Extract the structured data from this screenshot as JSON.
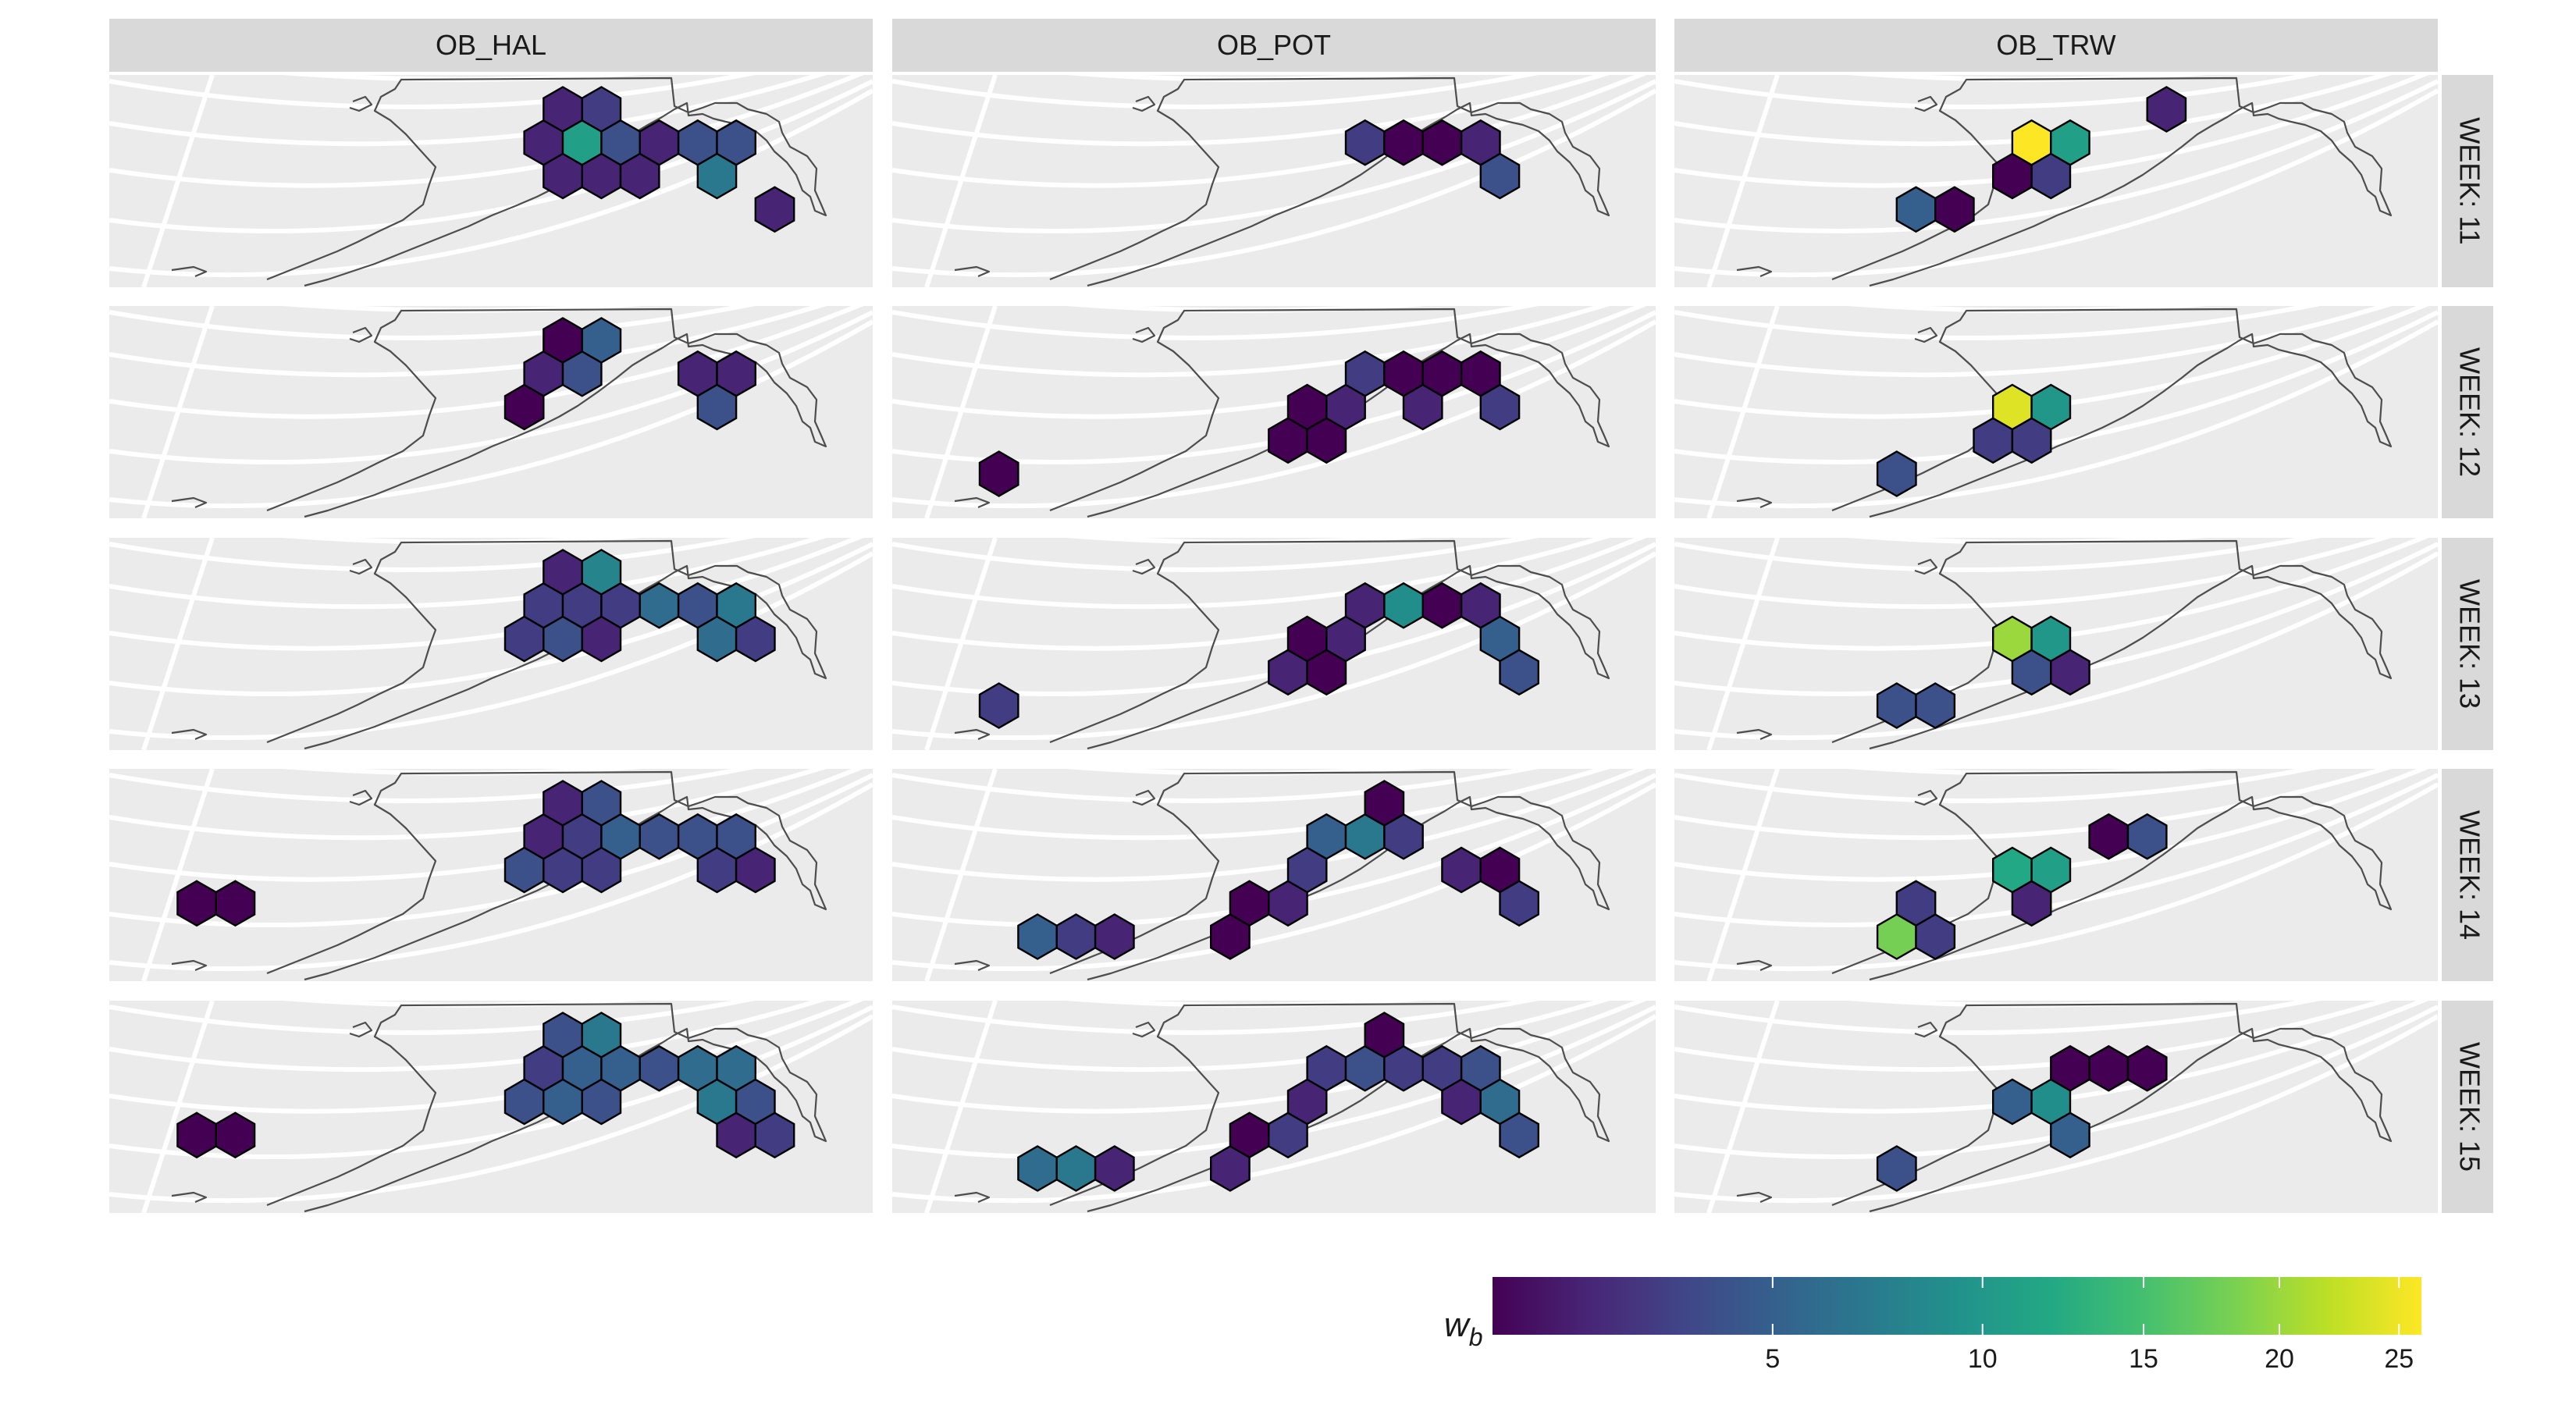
{
  "chart_data": {
    "type": "heatmap",
    "subtype": "faceted hexbin map",
    "columns": [
      "OB_HAL",
      "OB_POT",
      "OB_TRW"
    ],
    "rows": [
      "WEEK: 11",
      "WEEK: 12",
      "WEEK: 13",
      "WEEK: 14",
      "WEEK: 15"
    ],
    "legend": {
      "title": "w",
      "title_subscript": "b",
      "placement": "bottom-right",
      "colormap": "viridis",
      "range": [
        1,
        26
      ],
      "ticks": [
        5,
        10,
        15,
        20,
        25
      ],
      "tick_labels": [
        "5",
        "10",
        "15",
        "20",
        "25"
      ]
    },
    "panels": [
      {
        "column": "OB_HAL",
        "row": "WEEK: 11",
        "cells": [
          [
            10,
            1,
            2
          ],
          [
            11,
            0,
            2
          ],
          [
            11,
            1,
            11
          ],
          [
            11,
            2,
            2
          ],
          [
            12,
            0,
            3
          ],
          [
            12,
            1,
            4
          ],
          [
            12,
            2,
            2
          ],
          [
            13,
            1,
            2
          ],
          [
            13,
            2,
            2
          ],
          [
            14,
            1,
            4
          ],
          [
            15,
            1,
            4
          ],
          [
            15,
            2,
            7
          ],
          [
            16,
            3,
            2
          ]
        ]
      },
      {
        "column": "OB_HAL",
        "row": "WEEK: 12",
        "cells": [
          [
            10,
            1,
            2
          ],
          [
            10,
            2,
            1
          ],
          [
            11,
            0,
            1
          ],
          [
            11,
            1,
            4
          ],
          [
            12,
            0,
            5
          ],
          [
            14,
            1,
            2
          ],
          [
            15,
            1,
            2
          ],
          [
            15,
            2,
            4
          ]
        ]
      },
      {
        "column": "OB_HAL",
        "row": "WEEK: 13",
        "cells": [
          [
            10,
            1,
            3
          ],
          [
            10,
            2,
            3
          ],
          [
            11,
            0,
            2
          ],
          [
            11,
            1,
            3
          ],
          [
            11,
            2,
            4
          ],
          [
            12,
            0,
            8
          ],
          [
            12,
            1,
            3
          ],
          [
            12,
            2,
            2
          ],
          [
            13,
            1,
            6
          ],
          [
            14,
            1,
            4
          ],
          [
            15,
            1,
            7
          ],
          [
            15,
            2,
            6
          ],
          [
            16,
            2,
            3
          ]
        ]
      },
      {
        "column": "OB_HAL",
        "row": "WEEK: 14",
        "cells": [
          [
            1,
            3,
            1
          ],
          [
            2,
            3,
            1
          ],
          [
            10,
            1,
            2
          ],
          [
            10,
            2,
            4
          ],
          [
            11,
            0,
            2
          ],
          [
            11,
            1,
            3
          ],
          [
            11,
            2,
            3
          ],
          [
            12,
            0,
            4
          ],
          [
            12,
            1,
            5
          ],
          [
            12,
            2,
            3
          ],
          [
            13,
            1,
            4
          ],
          [
            14,
            1,
            4
          ],
          [
            15,
            1,
            4
          ],
          [
            15,
            2,
            3
          ],
          [
            16,
            2,
            2
          ]
        ]
      },
      {
        "column": "OB_HAL",
        "row": "WEEK: 15",
        "cells": [
          [
            1,
            3,
            1
          ],
          [
            2,
            3,
            1
          ],
          [
            10,
            1,
            3
          ],
          [
            10,
            2,
            4
          ],
          [
            11,
            0,
            4
          ],
          [
            11,
            1,
            5
          ],
          [
            11,
            2,
            5
          ],
          [
            12,
            0,
            7
          ],
          [
            12,
            1,
            5
          ],
          [
            12,
            2,
            4
          ],
          [
            13,
            1,
            4
          ],
          [
            14,
            1,
            6
          ],
          [
            15,
            1,
            6
          ],
          [
            15,
            2,
            7
          ],
          [
            15,
            3,
            2
          ],
          [
            16,
            2,
            4
          ],
          [
            16,
            3,
            3
          ]
        ]
      },
      {
        "column": "OB_POT",
        "row": "WEEK: 11",
        "cells": [
          [
            11,
            1,
            3
          ],
          [
            12,
            1,
            1
          ],
          [
            13,
            1,
            1
          ],
          [
            14,
            1,
            2
          ],
          [
            15,
            2,
            4
          ]
        ]
      },
      {
        "column": "OB_POT",
        "row": "WEEK: 12",
        "cells": [
          [
            2,
            4,
            1
          ],
          [
            9,
            3,
            1
          ],
          [
            10,
            2,
            1
          ],
          [
            10,
            3,
            1
          ],
          [
            11,
            1,
            3
          ],
          [
            11,
            2,
            2
          ],
          [
            12,
            1,
            1
          ],
          [
            13,
            1,
            1
          ],
          [
            13,
            2,
            2
          ],
          [
            14,
            1,
            1
          ],
          [
            15,
            2,
            3
          ]
        ]
      },
      {
        "column": "OB_POT",
        "row": "WEEK: 13",
        "cells": [
          [
            2,
            4,
            3
          ],
          [
            9,
            3,
            2
          ],
          [
            10,
            2,
            1
          ],
          [
            10,
            3,
            1
          ],
          [
            11,
            1,
            2
          ],
          [
            11,
            2,
            2
          ],
          [
            12,
            1,
            9
          ],
          [
            13,
            1,
            1
          ],
          [
            14,
            1,
            2
          ],
          [
            15,
            2,
            5
          ],
          [
            15,
            3,
            4
          ]
        ]
      },
      {
        "column": "OB_POT",
        "row": "WEEK: 14",
        "cells": [
          [
            3,
            4,
            5
          ],
          [
            4,
            4,
            3
          ],
          [
            5,
            4,
            2
          ],
          [
            8,
            3,
            1
          ],
          [
            8,
            4,
            1
          ],
          [
            9,
            3,
            2
          ],
          [
            10,
            1,
            5
          ],
          [
            10,
            2,
            3
          ],
          [
            11,
            1,
            7
          ],
          [
            12,
            0,
            1
          ],
          [
            12,
            1,
            3
          ],
          [
            14,
            2,
            2
          ],
          [
            15,
            2,
            1
          ],
          [
            15,
            3,
            3
          ]
        ]
      },
      {
        "column": "OB_POT",
        "row": "WEEK: 15",
        "cells": [
          [
            3,
            4,
            6
          ],
          [
            4,
            4,
            7
          ],
          [
            5,
            4,
            2
          ],
          [
            8,
            3,
            1
          ],
          [
            8,
            4,
            2
          ],
          [
            9,
            3,
            3
          ],
          [
            10,
            1,
            3
          ],
          [
            10,
            2,
            2
          ],
          [
            11,
            1,
            4
          ],
          [
            12,
            0,
            1
          ],
          [
            12,
            1,
            3
          ],
          [
            13,
            1,
            3
          ],
          [
            14,
            1,
            4
          ],
          [
            14,
            2,
            2
          ],
          [
            15,
            2,
            6
          ],
          [
            15,
            3,
            4
          ]
        ]
      },
      {
        "column": "OB_TRW",
        "row": "WEEK: 11",
        "cells": [
          [
            5,
            3,
            5
          ],
          [
            6,
            3,
            1
          ],
          [
            8,
            2,
            1
          ],
          [
            8,
            1,
            26
          ],
          [
            9,
            1,
            11
          ],
          [
            9,
            2,
            3
          ],
          [
            12,
            0,
            2
          ]
        ]
      },
      {
        "column": "OB_TRW",
        "row": "WEEK: 12",
        "cells": [
          [
            5,
            4,
            4
          ],
          [
            7,
            3,
            3
          ],
          [
            8,
            3,
            3
          ],
          [
            8,
            2,
            24
          ],
          [
            9,
            2,
            10
          ]
        ]
      },
      {
        "column": "OB_TRW",
        "row": "WEEK: 13",
        "cells": [
          [
            5,
            4,
            4
          ],
          [
            6,
            4,
            4
          ],
          [
            8,
            2,
            20
          ],
          [
            8,
            3,
            4
          ],
          [
            9,
            2,
            10
          ],
          [
            9,
            3,
            2
          ]
        ]
      },
      {
        "column": "OB_TRW",
        "row": "WEEK: 14",
        "cells": [
          [
            5,
            3,
            3
          ],
          [
            5,
            4,
            18
          ],
          [
            6,
            4,
            3
          ],
          [
            8,
            3,
            2
          ],
          [
            8,
            2,
            12
          ],
          [
            9,
            2,
            11
          ],
          [
            10,
            1,
            1
          ],
          [
            11,
            1,
            4
          ]
        ]
      },
      {
        "column": "OB_TRW",
        "row": "WEEK: 15",
        "cells": [
          [
            5,
            4,
            4
          ],
          [
            8,
            2,
            5
          ],
          [
            9,
            1,
            1
          ],
          [
            9,
            2,
            9
          ],
          [
            9,
            3,
            5
          ],
          [
            10,
            1,
            1
          ],
          [
            11,
            1,
            1
          ]
        ]
      }
    ]
  }
}
